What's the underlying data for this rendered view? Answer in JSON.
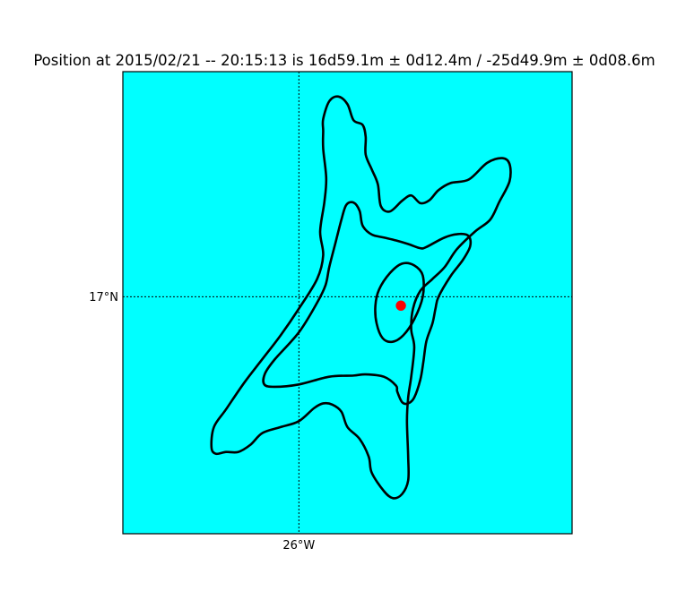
{
  "chart_data": {
    "type": "map",
    "title": "Position at 2015/02/21 -- 20:15:13 is 16d59.1m ± 0d12.4m  /  -25d49.9m ± 0d08.6m",
    "map_background_color": "#00ffff",
    "contour_color": "#000000",
    "marker_color": "#ff0000",
    "grid": true,
    "grid_style": "dotted",
    "meridians": [
      {
        "value": -26,
        "label": "26°W"
      }
    ],
    "parallels": [
      {
        "value": 17,
        "label": "17°N"
      }
    ],
    "lon_range": [
      -26.29,
      -25.55
    ],
    "lat_range": [
      16.6,
      17.38
    ],
    "estimated_position": {
      "lat": 16.985,
      "lon": -25.832
    },
    "uncertainty": {
      "lat_deg": 0.207,
      "lon_deg": 0.143
    },
    "contours": [
      {
        "level": "inner",
        "points": [
          [
            -25.868,
            17.012
          ],
          [
            -25.85,
            17.04
          ],
          [
            -25.83,
            17.056
          ],
          [
            -25.81,
            17.053
          ],
          [
            -25.796,
            17.036
          ],
          [
            -25.796,
            17.0
          ],
          [
            -25.81,
            16.962
          ],
          [
            -25.828,
            16.935
          ],
          [
            -25.846,
            16.924
          ],
          [
            -25.862,
            16.93
          ],
          [
            -25.872,
            16.955
          ],
          [
            -25.874,
            16.985
          ],
          [
            -25.868,
            17.012
          ]
        ]
      },
      {
        "level": "middle",
        "points": [
          [
            -25.95,
            17.05
          ],
          [
            -25.94,
            17.09
          ],
          [
            -25.93,
            17.13
          ],
          [
            -25.922,
            17.155
          ],
          [
            -25.91,
            17.159
          ],
          [
            -25.9,
            17.145
          ],
          [
            -25.895,
            17.12
          ],
          [
            -25.88,
            17.105
          ],
          [
            -25.86,
            17.1
          ],
          [
            -25.84,
            17.095
          ],
          [
            -25.82,
            17.089
          ],
          [
            -25.8,
            17.082
          ],
          [
            -25.79,
            17.084
          ],
          [
            -25.76,
            17.1
          ],
          [
            -25.735,
            17.106
          ],
          [
            -25.72,
            17.102
          ],
          [
            -25.718,
            17.085
          ],
          [
            -25.73,
            17.062
          ],
          [
            -25.75,
            17.035
          ],
          [
            -25.77,
            17.0
          ],
          [
            -25.775,
            16.98
          ],
          [
            -25.78,
            16.955
          ],
          [
            -25.79,
            16.925
          ],
          [
            -25.795,
            16.89
          ],
          [
            -25.8,
            16.86
          ],
          [
            -25.81,
            16.83
          ],
          [
            -25.82,
            16.82
          ],
          [
            -25.83,
            16.822
          ],
          [
            -25.838,
            16.84
          ],
          [
            -25.84,
            16.85
          ],
          [
            -25.86,
            16.865
          ],
          [
            -25.89,
            16.869
          ],
          [
            -25.91,
            16.867
          ],
          [
            -25.95,
            16.865
          ],
          [
            -26.0,
            16.852
          ],
          [
            -26.04,
            16.848
          ],
          [
            -26.057,
            16.852
          ],
          [
            -26.056,
            16.87
          ],
          [
            -26.04,
            16.894
          ],
          [
            -26.0,
            16.94
          ],
          [
            -25.97,
            16.99
          ],
          [
            -25.956,
            17.02
          ],
          [
            -25.95,
            17.05
          ]
        ]
      },
      {
        "level": "outer",
        "points": [
          [
            -25.96,
            17.28
          ],
          [
            -25.96,
            17.3
          ],
          [
            -25.95,
            17.33
          ],
          [
            -25.935,
            17.338
          ],
          [
            -25.92,
            17.325
          ],
          [
            -25.91,
            17.298
          ],
          [
            -25.895,
            17.29
          ],
          [
            -25.89,
            17.27
          ],
          [
            -25.89,
            17.24
          ],
          [
            -25.88,
            17.215
          ],
          [
            -25.87,
            17.19
          ],
          [
            -25.865,
            17.153
          ],
          [
            -25.85,
            17.144
          ],
          [
            -25.83,
            17.162
          ],
          [
            -25.815,
            17.171
          ],
          [
            -25.8,
            17.158
          ],
          [
            -25.785,
            17.163
          ],
          [
            -25.77,
            17.18
          ],
          [
            -25.75,
            17.192
          ],
          [
            -25.72,
            17.198
          ],
          [
            -25.69,
            17.226
          ],
          [
            -25.665,
            17.234
          ],
          [
            -25.653,
            17.224
          ],
          [
            -25.653,
            17.195
          ],
          [
            -25.67,
            17.16
          ],
          [
            -25.685,
            17.13
          ],
          [
            -25.71,
            17.11
          ],
          [
            -25.74,
            17.08
          ],
          [
            -25.76,
            17.05
          ],
          [
            -25.78,
            17.03
          ],
          [
            -25.8,
            17.01
          ],
          [
            -25.812,
            16.98
          ],
          [
            -25.815,
            16.945
          ],
          [
            -25.81,
            16.915
          ],
          [
            -25.815,
            16.865
          ],
          [
            -25.82,
            16.83
          ],
          [
            -25.822,
            16.79
          ],
          [
            -25.82,
            16.73
          ],
          [
            -25.82,
            16.69
          ],
          [
            -25.83,
            16.667
          ],
          [
            -25.845,
            16.66
          ],
          [
            -25.86,
            16.672
          ],
          [
            -25.88,
            16.703
          ],
          [
            -25.885,
            16.73
          ],
          [
            -25.9,
            16.76
          ],
          [
            -25.92,
            16.78
          ],
          [
            -25.93,
            16.806
          ],
          [
            -25.945,
            16.818
          ],
          [
            -25.96,
            16.82
          ],
          [
            -25.975,
            16.812
          ],
          [
            -26.0,
            16.79
          ],
          [
            -26.03,
            16.78
          ],
          [
            -26.06,
            16.77
          ],
          [
            -26.08,
            16.75
          ],
          [
            -26.1,
            16.738
          ],
          [
            -26.12,
            16.738
          ],
          [
            -26.137,
            16.735
          ],
          [
            -26.144,
            16.746
          ],
          [
            -26.14,
            16.78
          ],
          [
            -26.12,
            16.81
          ],
          [
            -26.09,
            16.855
          ],
          [
            -26.06,
            16.895
          ],
          [
            -26.03,
            16.935
          ],
          [
            -26.0,
            16.98
          ],
          [
            -25.97,
            17.03
          ],
          [
            -25.96,
            17.07
          ],
          [
            -25.965,
            17.11
          ],
          [
            -25.958,
            17.16
          ],
          [
            -25.955,
            17.2
          ],
          [
            -25.96,
            17.25
          ],
          [
            -25.96,
            17.28
          ]
        ]
      }
    ]
  }
}
